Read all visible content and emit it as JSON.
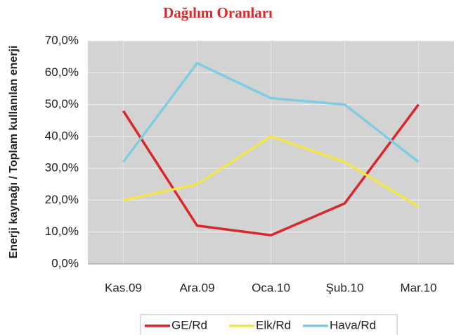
{
  "chart_data": {
    "type": "line",
    "title": "Dağılım Oranları",
    "y_label": "Enerji kaynağı / Toplam kullanılan enerji",
    "categories": [
      "Kas.09",
      "Ara.09",
      "Oca.10",
      "Şub.10",
      "Mar.10"
    ],
    "series": [
      {
        "name": "GE/Rd",
        "color": "#d9272a",
        "values": [
          48,
          12,
          9,
          19,
          50
        ]
      },
      {
        "name": "Elk/Rd",
        "color": "#f2e64a",
        "values": [
          20,
          25,
          40,
          32,
          18
        ]
      },
      {
        "name": "Hava/Rd",
        "color": "#7ecde0",
        "values": [
          32,
          63,
          52,
          50,
          32
        ]
      }
    ],
    "ylim": [
      0,
      70
    ],
    "yticks": [
      {
        "value": 0,
        "label": "0,0%"
      },
      {
        "value": 10,
        "label": "10,0%"
      },
      {
        "value": 20,
        "label": "20,0%"
      },
      {
        "value": 30,
        "label": "30,0%"
      },
      {
        "value": 40,
        "label": "40,0%"
      },
      {
        "value": 50,
        "label": "50,0%"
      },
      {
        "value": 60,
        "label": "60,0%"
      },
      {
        "value": 70,
        "label": "70,0%"
      }
    ],
    "grid": true,
    "legend": "bottom"
  }
}
